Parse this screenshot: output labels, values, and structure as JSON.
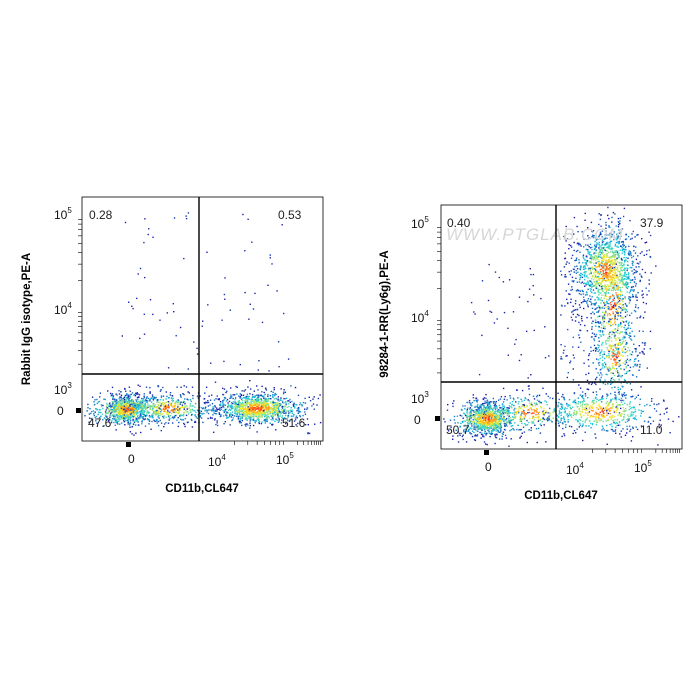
{
  "chart_data": [
    {
      "type": "scatter",
      "subtype": "flow-cytometry-density-dot-plot",
      "title": "",
      "xlabel": "CD11b,CL647",
      "ylabel": "Rabbit IgG isotype,PE-A",
      "x_scale": "biexponential",
      "y_scale": "biexponential",
      "x_ticks": [
        "0",
        "10^4",
        "10^5"
      ],
      "y_ticks": [
        "0",
        "10^3",
        "10^4",
        "10^5"
      ],
      "gate": {
        "x": 6000,
        "y": 1700
      },
      "quadrants": {
        "upper_left": "0.28",
        "upper_right": "0.53",
        "lower_left": "47.6",
        "lower_right": "51.6"
      },
      "populations": [
        {
          "name": "CD11b-negative",
          "x_center": 0,
          "y_center": 0,
          "percent": 47.6
        },
        {
          "name": "CD11b-positive",
          "x_center": 30000,
          "y_center": 0,
          "percent": 51.6
        }
      ],
      "watermark": ""
    },
    {
      "type": "scatter",
      "subtype": "flow-cytometry-density-dot-plot",
      "title": "",
      "xlabel": "CD11b,CL647",
      "ylabel": "98284-1-RR(Ly6g),PE-A",
      "x_scale": "biexponential",
      "y_scale": "biexponential",
      "x_ticks": [
        "0",
        "10^4",
        "10^5"
      ],
      "y_ticks": [
        "0",
        "10^3",
        "10^4",
        "10^5"
      ],
      "gate": {
        "x": 6000,
        "y": 1700
      },
      "quadrants": {
        "upper_left": "0.40",
        "upper_right": "37.9",
        "lower_left": "50.7",
        "lower_right": "11.0"
      },
      "populations": [
        {
          "name": "CD11b-negative Ly6g-negative",
          "x_center": 0,
          "y_center": 0,
          "percent": 50.7
        },
        {
          "name": "CD11b-positive Ly6g-positive",
          "x_center": 40000,
          "y_center": 25000,
          "percent": 37.9
        },
        {
          "name": "CD11b-positive Ly6g-negative",
          "x_center": 30000,
          "y_center": 0,
          "percent": 11.0
        }
      ],
      "watermark": "WWW.PTGLAB.COM"
    }
  ],
  "colors": {
    "density_low": "#1a1aa8",
    "density_mid": "#18d0e0",
    "density_high": "#ffee22",
    "density_peak": "#ff2a10",
    "gate_line": "#000000"
  }
}
